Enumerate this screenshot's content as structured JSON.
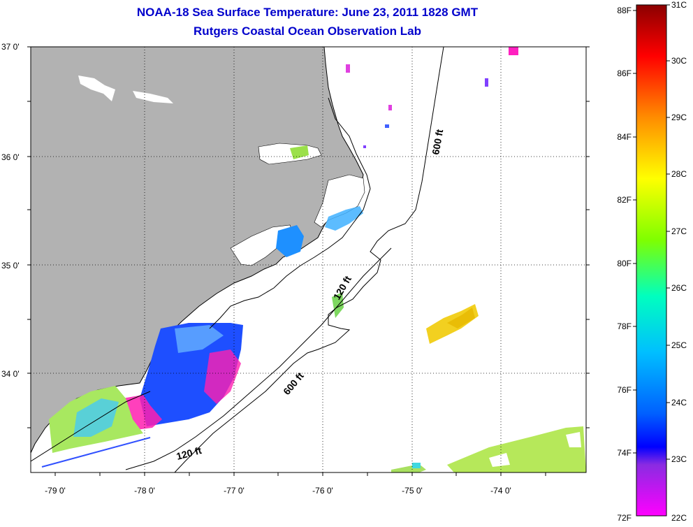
{
  "header": {
    "title": "NOAA-18 Sea Surface Temperature:  June 23, 2011 1828 GMT",
    "subtitle": "Rutgers Coastal Ocean Observation Lab"
  },
  "map": {
    "lat_labels": [
      "37 0'",
      "36 0'",
      "35 0'",
      "34 0'"
    ],
    "lon_labels": [
      "-79 0'",
      "-78 0'",
      "-77 0'",
      "-76 0'",
      "-75 0'",
      "-74 0'"
    ],
    "isobaths": [
      {
        "label": "600 ft",
        "depth_ft": 600
      },
      {
        "label": "120 ft",
        "depth_ft": 120
      },
      {
        "label": "600 ft",
        "depth_ft": 600
      },
      {
        "label": "120 ft",
        "depth_ft": 120
      }
    ],
    "land_color": "#b2b2b2"
  },
  "colorbar": {
    "fahrenheit": [
      "88F",
      "86F",
      "84F",
      "82F",
      "80F",
      "78F",
      "76F",
      "74F",
      "72F"
    ],
    "celsius": [
      "31C",
      "30C",
      "29C",
      "28C",
      "27C",
      "26C",
      "25C",
      "24C",
      "23C",
      "22C"
    ],
    "colors": [
      "#8b0000",
      "#ff0000",
      "#ff8c00",
      "#ffff00",
      "#7fff00",
      "#00ffbf",
      "#00bfff",
      "#0060ff",
      "#0000ff",
      "#8a2be2",
      "#ff00ff"
    ]
  }
}
